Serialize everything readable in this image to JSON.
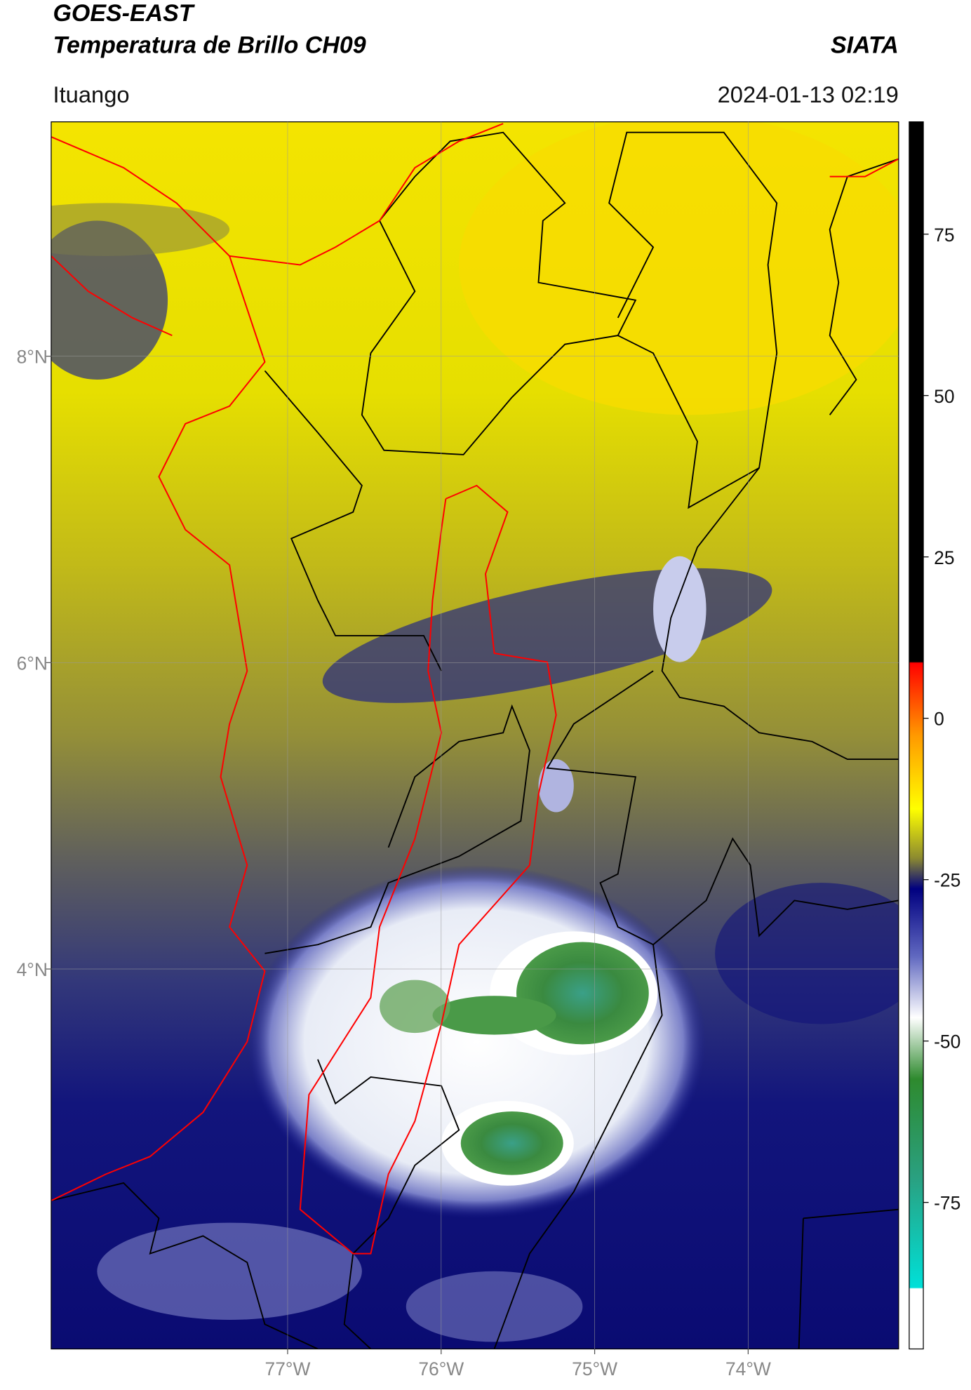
{
  "header": {
    "title_line1": "GOES-EAST",
    "title_line2": "Temperatura de Brillo CH09",
    "organization": "SIATA",
    "location": "Ituango",
    "datetime": "2024-01-13 02:19"
  },
  "map": {
    "lon_range": [
      -78.54,
      -73.02
    ],
    "lat_range": [
      1.52,
      9.53
    ],
    "lon_ticks": [
      {
        "value": -77,
        "label": "77°W"
      },
      {
        "value": -76,
        "label": "76°W"
      },
      {
        "value": -75,
        "label": "75°W"
      },
      {
        "value": -74,
        "label": "74°W"
      }
    ],
    "lat_ticks": [
      {
        "value": 8,
        "label": "8°N"
      },
      {
        "value": 6,
        "label": "6°N"
      },
      {
        "value": 4,
        "label": "4°N"
      }
    ]
  },
  "colorbar": {
    "range": [
      -97.7,
      92.4
    ],
    "ticks": [
      75,
      50,
      25,
      0,
      -25,
      -50,
      -75
    ]
  }
}
